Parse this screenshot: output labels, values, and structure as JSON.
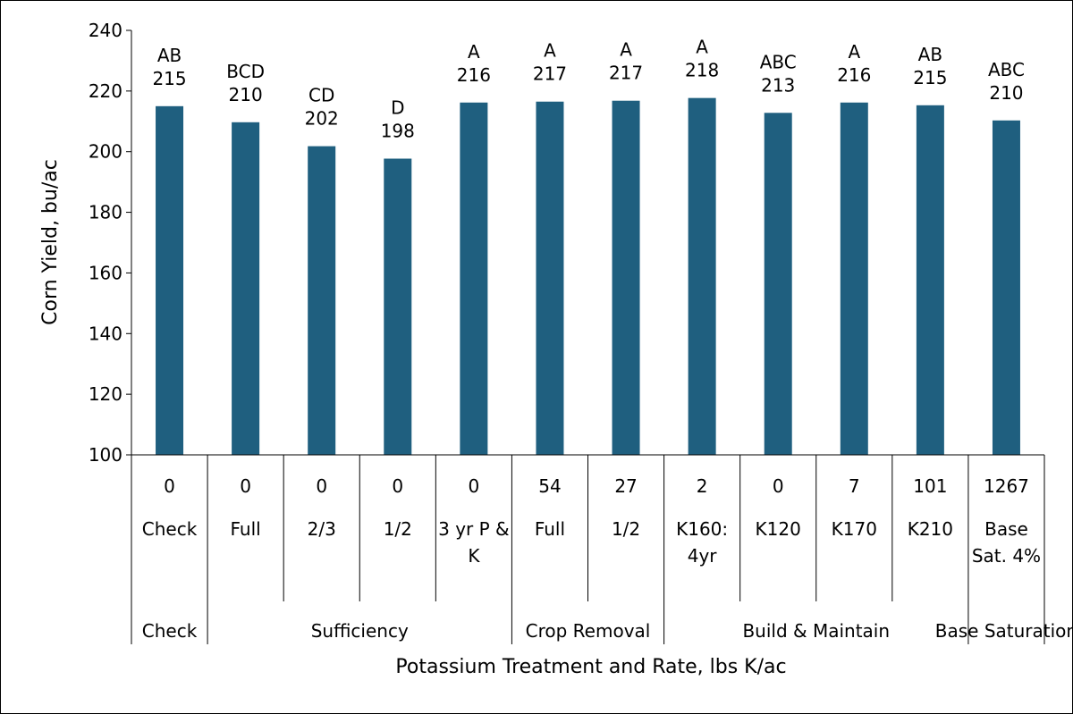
{
  "chart_data": {
    "type": "bar",
    "title": "",
    "xlabel": "Potassium Treatment and Rate, lbs K/ac",
    "ylabel": "Corn Yield, bu/ac",
    "ylim": [
      100,
      240
    ],
    "yticks": [
      100,
      120,
      140,
      160,
      180,
      200,
      220,
      240
    ],
    "grid": false,
    "legend": "none",
    "bar_color": "#1F5F7F",
    "categories": [
      {
        "rate": "0",
        "treatment": "Check",
        "group": "Check"
      },
      {
        "rate": "0",
        "treatment": "Full",
        "group": "Sufficiency"
      },
      {
        "rate": "0",
        "treatment": "2/3",
        "group": "Sufficiency"
      },
      {
        "rate": "0",
        "treatment": "1/2",
        "group": "Sufficiency"
      },
      {
        "rate": "0",
        "treatment": "3 yr P & K",
        "group": "Sufficiency"
      },
      {
        "rate": "54",
        "treatment": "Full",
        "group": "Crop Removal"
      },
      {
        "rate": "27",
        "treatment": "1/2",
        "group": "Crop Removal"
      },
      {
        "rate": "2",
        "treatment": "K160: 4yr",
        "group": "Build & Maintain"
      },
      {
        "rate": "0",
        "treatment": "K120",
        "group": "Build & Maintain"
      },
      {
        "rate": "7",
        "treatment": "K170",
        "group": "Build & Maintain"
      },
      {
        "rate": "101",
        "treatment": "K210",
        "group": "Build & Maintain"
      },
      {
        "rate": "1267",
        "treatment": "Base Sat. 4%",
        "group": "Base Saturation"
      }
    ],
    "values": [
      215,
      209.7,
      201.8,
      197.7,
      216.2,
      216.5,
      216.8,
      217.7,
      212.8,
      216.2,
      215.3,
      210.3
    ],
    "value_labels": [
      "215",
      "210",
      "202",
      "198",
      "216",
      "217",
      "217",
      "218",
      "213",
      "216",
      "215",
      "210"
    ],
    "letter_labels": [
      "AB",
      "BCD",
      "CD",
      "D",
      "A",
      "A",
      "A",
      "A",
      "ABC",
      "A",
      "AB",
      "ABC"
    ],
    "groups": [
      {
        "label": "Check",
        "start": 0,
        "end": 0
      },
      {
        "label": "Sufficiency",
        "start": 1,
        "end": 4
      },
      {
        "label": "Crop Removal",
        "start": 5,
        "end": 6
      },
      {
        "label": "Build & Maintain",
        "start": 7,
        "end": 10
      },
      {
        "label": "Base Saturation",
        "start": 11,
        "end": 11
      }
    ]
  }
}
